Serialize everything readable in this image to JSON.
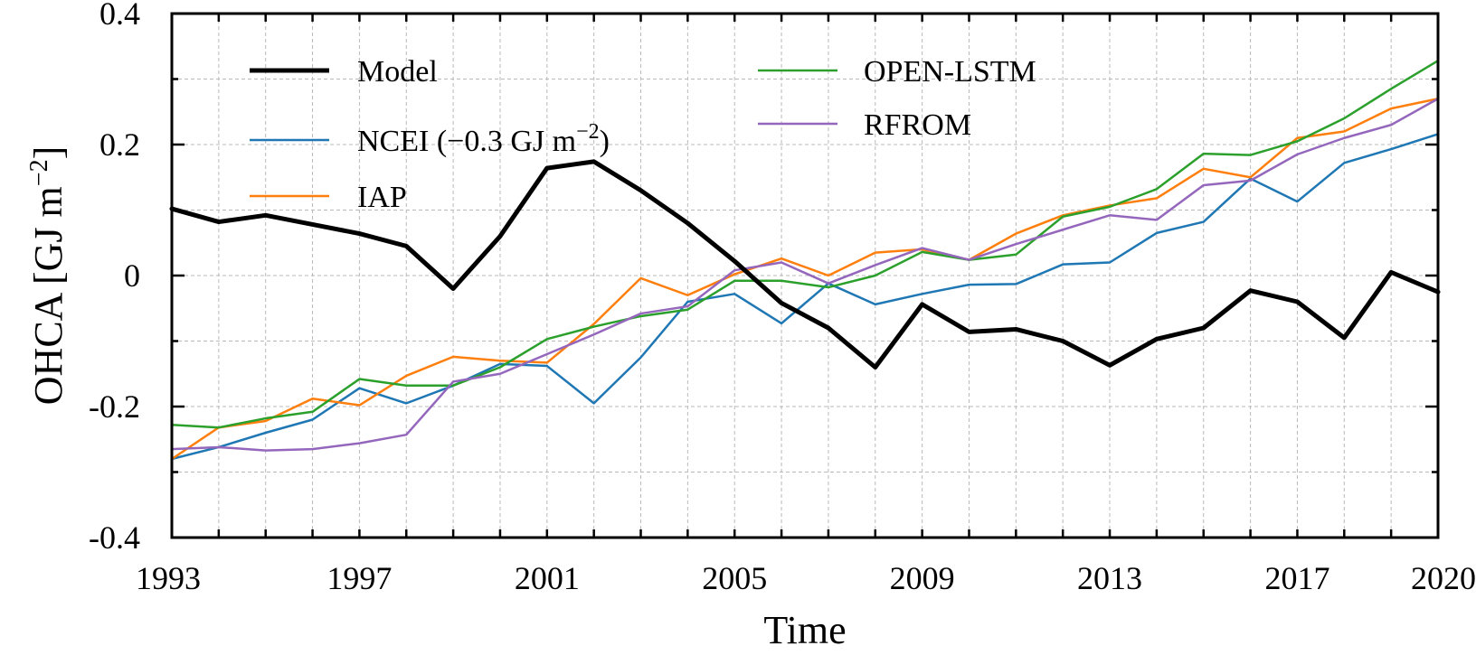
{
  "chart_data": {
    "type": "line",
    "title": "",
    "xlabel": "Time",
    "ylabel": "OHCA [GJ m⁻²]",
    "ylabel_main": "OHCA [GJ m",
    "ylabel_sup": "−2",
    "ylabel_close": "]",
    "xlim": [
      1993,
      2020
    ],
    "ylim": [
      -0.4,
      0.4
    ],
    "xticks": [
      1993,
      1997,
      2001,
      2005,
      2009,
      2013,
      2017,
      2020
    ],
    "xtick_labels": [
      "1993",
      "1997",
      "2001",
      "2005",
      "2009",
      "2013",
      "2017",
      "2020"
    ],
    "yticks": [
      -0.4,
      -0.2,
      0,
      0.2,
      0.4
    ],
    "ytick_labels": [
      "-0.4",
      "-0.2",
      "0",
      "0.2",
      "0.4"
    ],
    "grid": true,
    "legend_position": "top, two columns",
    "x": [
      1993,
      1994,
      1995,
      1996,
      1997,
      1998,
      1999,
      2000,
      2001,
      2002,
      2003,
      2004,
      2005,
      2006,
      2007,
      2008,
      2009,
      2010,
      2011,
      2012,
      2013,
      2014,
      2015,
      2016,
      2017,
      2018,
      2019,
      2020
    ],
    "series": [
      {
        "name": "Model",
        "color": "#000000",
        "width": 5,
        "values": [
          0.102,
          0.082,
          0.092,
          0.078,
          0.064,
          0.045,
          -0.02,
          0.06,
          0.164,
          0.174,
          0.13,
          0.08,
          0.022,
          -0.042,
          -0.08,
          -0.14,
          -0.044,
          -0.086,
          -0.082,
          -0.1,
          -0.137,
          -0.097,
          -0.08,
          -0.023,
          -0.04,
          -0.095,
          0.005,
          -0.025
        ]
      },
      {
        "name": "NCEI (−0.3 GJ m⁻²)",
        "name_main": "NCEI (−0.3 GJ m",
        "name_sup": "−2",
        "name_close": ")",
        "color": "#1f77b4",
        "width": 2.5,
        "values": [
          -0.28,
          -0.262,
          -0.24,
          -0.22,
          -0.172,
          -0.195,
          -0.168,
          -0.135,
          -0.138,
          -0.195,
          -0.125,
          -0.04,
          -0.028,
          -0.073,
          -0.012,
          -0.044,
          -0.028,
          -0.014,
          -0.013,
          0.017,
          0.02,
          0.065,
          0.082,
          0.148,
          0.113,
          0.172,
          0.193,
          0.216
        ]
      },
      {
        "name": "IAP",
        "color": "#ff7f0e",
        "width": 2.5,
        "values": [
          -0.28,
          -0.232,
          -0.222,
          -0.188,
          -0.198,
          -0.153,
          -0.124,
          -0.13,
          -0.133,
          -0.074,
          -0.004,
          -0.03,
          0.002,
          0.026,
          0.0,
          0.035,
          0.04,
          0.024,
          0.064,
          0.092,
          0.107,
          0.118,
          0.163,
          0.15,
          0.21,
          0.22,
          0.255,
          0.27
        ]
      },
      {
        "name": "OPEN-LSTM",
        "color": "#2ca02c",
        "width": 2.5,
        "values": [
          -0.228,
          -0.232,
          -0.218,
          -0.208,
          -0.158,
          -0.168,
          -0.168,
          -0.14,
          -0.097,
          -0.078,
          -0.062,
          -0.052,
          -0.008,
          -0.008,
          -0.018,
          0.0,
          0.036,
          0.024,
          0.032,
          0.09,
          0.105,
          0.132,
          0.186,
          0.184,
          0.205,
          0.24,
          0.285,
          0.328
        ]
      },
      {
        "name": "RFROM",
        "color": "#9467bd",
        "width": 2.5,
        "values": [
          -0.265,
          -0.262,
          -0.267,
          -0.265,
          -0.256,
          -0.243,
          -0.162,
          -0.15,
          -0.12,
          -0.09,
          -0.058,
          -0.047,
          0.008,
          0.02,
          -0.012,
          0.016,
          0.042,
          0.024,
          0.048,
          0.07,
          0.092,
          0.085,
          0.138,
          0.145,
          0.185,
          0.21,
          0.23,
          0.27
        ]
      }
    ]
  }
}
